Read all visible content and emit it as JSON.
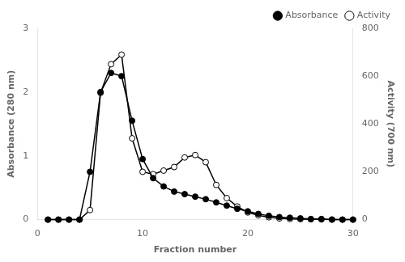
{
  "chart_data": {
    "type": "line",
    "x": [
      1,
      2,
      3,
      4,
      5,
      6,
      7,
      8,
      9,
      10,
      11,
      12,
      13,
      14,
      15,
      16,
      17,
      18,
      19,
      20,
      21,
      22,
      23,
      24,
      25,
      26,
      27,
      28,
      29,
      30
    ],
    "series": [
      {
        "name": "Absorbance",
        "color": "#000000",
        "marker": "circle",
        "values": [
          0.0,
          0.0,
          0.0,
          0.0,
          0.75,
          2.0,
          2.3,
          2.25,
          1.55,
          0.95,
          0.65,
          0.52,
          0.44,
          0.4,
          0.36,
          0.32,
          0.27,
          0.22,
          0.17,
          0.13,
          0.09,
          0.06,
          0.04,
          0.03,
          0.02,
          0.01,
          0.01,
          0.0,
          0.0,
          0.0
        ]
      },
      {
        "name": "Activity",
        "color": "#000000",
        "marker": "circle-open",
        "axis": "y2",
        "values": [
          0.0,
          0.0,
          0.0,
          0.0,
          40.0,
          530.0,
          650.0,
          690.0,
          340.0,
          200.0,
          190.0,
          205.0,
          220.0,
          260.0,
          270.0,
          240.0,
          145.0,
          90.0,
          55.0,
          30.0,
          18.0,
          10.0,
          5.0,
          3.0,
          2.0,
          1.5,
          1.0,
          0.5,
          0.0,
          0.0
        ]
      }
    ],
    "xlabel": "Fraction number",
    "ylabel": "Absorbance (280 nm)",
    "y2label": "Activity (700 nm)",
    "xlim": [
      0,
      30
    ],
    "xticks": [
      0,
      10,
      20,
      30
    ],
    "ylim": [
      0,
      3
    ],
    "yticks": [
      0,
      1,
      2,
      3
    ],
    "y2lim": [
      0,
      800
    ],
    "y2ticks": [
      0,
      200,
      400,
      600,
      800
    ],
    "legend": "upper right",
    "grid": false
  }
}
